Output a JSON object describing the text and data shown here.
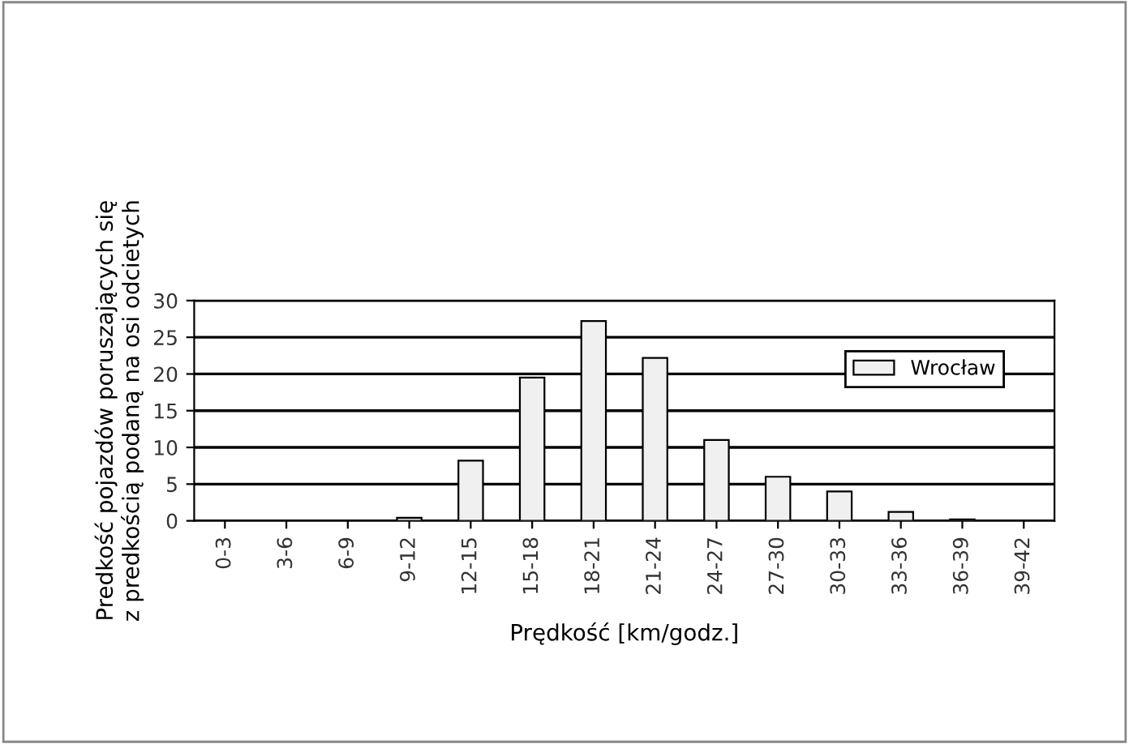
{
  "chart_data": {
    "type": "bar",
    "xlabel": "Prędkość [km/godz.]",
    "ylabel": "Predkość pojazdów poruszających się\nz predkością podaną na osi odcietych",
    "categories": [
      "0-3",
      "3-6",
      "6-9",
      "9-12",
      "12-15",
      "15-18",
      "18-21",
      "21-24",
      "24-27",
      "27-30",
      "30-33",
      "33-36",
      "36-39",
      "39-42"
    ],
    "series": [
      {
        "name": "Wrocław",
        "color": "#f0f0f0",
        "values": [
          0,
          0,
          0,
          0.4,
          8.2,
          19.5,
          27.2,
          22.2,
          11,
          6,
          4,
          1.2,
          0.2,
          0
        ]
      }
    ],
    "ylim": [
      0,
      30
    ],
    "yticks": [
      0,
      5,
      10,
      15,
      20,
      25,
      30
    ],
    "grid": "y",
    "legend": "top right"
  }
}
